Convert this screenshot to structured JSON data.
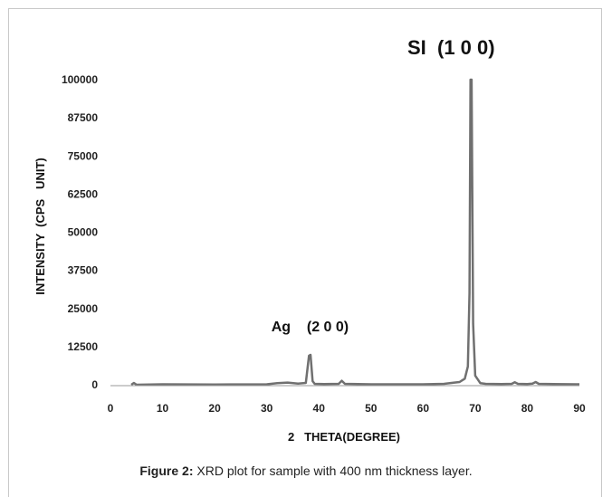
{
  "chart_data": {
    "type": "line",
    "xlabel": "2   THETA(DEGREE)",
    "ylabel": "INTENSITY  (CPS   UNIT)",
    "xlim": [
      0,
      90
    ],
    "ylim": [
      0,
      100000
    ],
    "x_ticks": [
      0,
      10,
      20,
      30,
      40,
      50,
      60,
      70,
      80,
      90
    ],
    "y_ticks": [
      0,
      12500,
      25000,
      37500,
      50000,
      62500,
      75000,
      87500,
      100000
    ],
    "grid": false,
    "series": [
      {
        "color": "#707070",
        "points": [
          [
            4,
            0
          ],
          [
            4.5,
            600
          ],
          [
            5,
            0
          ],
          [
            10,
            150
          ],
          [
            20,
            100
          ],
          [
            30,
            150
          ],
          [
            32,
            500
          ],
          [
            34,
            700
          ],
          [
            36,
            400
          ],
          [
            37.5,
            600
          ],
          [
            38.1,
            9500
          ],
          [
            38.4,
            9800
          ],
          [
            38.8,
            1200
          ],
          [
            39.2,
            300
          ],
          [
            41,
            200
          ],
          [
            43.8,
            300
          ],
          [
            44.4,
            1300
          ],
          [
            45,
            300
          ],
          [
            50,
            150
          ],
          [
            60,
            150
          ],
          [
            64,
            300
          ],
          [
            66,
            700
          ],
          [
            67,
            900
          ],
          [
            68,
            2000
          ],
          [
            68.6,
            6000
          ],
          [
            68.9,
            30000
          ],
          [
            69.1,
            100000
          ],
          [
            69.3,
            100000
          ],
          [
            69.6,
            20000
          ],
          [
            70,
            3000
          ],
          [
            71,
            500
          ],
          [
            72,
            300
          ],
          [
            75,
            200
          ],
          [
            77,
            300
          ],
          [
            77.6,
            800
          ],
          [
            78.2,
            300
          ],
          [
            80,
            200
          ],
          [
            81,
            400
          ],
          [
            81.6,
            900
          ],
          [
            82.2,
            300
          ],
          [
            85,
            200
          ],
          [
            90,
            150
          ]
        ]
      }
    ],
    "annotations": [
      {
        "text": "SI  (1 0 0)",
        "x": 69.2,
        "y": 100000
      },
      {
        "text": "Ag    (2 0 0)",
        "x": 38.3,
        "y": 9800
      }
    ]
  },
  "caption": {
    "label": "Figure 2:",
    "text": " XRD plot for sample with 400 nm thickness layer."
  }
}
